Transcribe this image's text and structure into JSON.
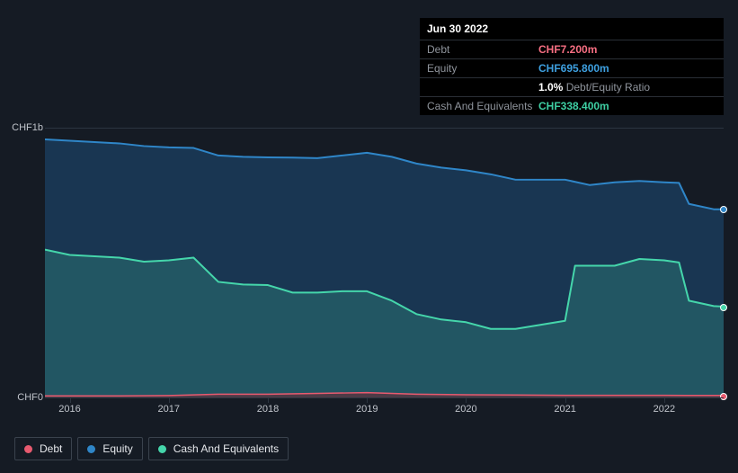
{
  "tooltip": {
    "date": "Jun 30 2022",
    "rows": [
      {
        "label": "Debt",
        "value": "CHF7.200m",
        "cls": "debt"
      },
      {
        "label": "Equity",
        "value": "CHF695.800m",
        "cls": "equity"
      },
      {
        "label": "",
        "ratio_num": "1.0%",
        "ratio_txt": " Debt/Equity Ratio",
        "cls": "ratio"
      },
      {
        "label": "Cash And Equivalents",
        "value": "CHF338.400m",
        "cls": "cash"
      }
    ]
  },
  "chart": {
    "type": "area",
    "background_color": "#151b24",
    "grid_color": "#2c3540",
    "xlim": [
      2015.75,
      2022.6
    ],
    "ylim": [
      0,
      1000
    ],
    "y_ticks": [
      {
        "v": 1000,
        "label": "CHF1b"
      },
      {
        "v": 0,
        "label": "CHF0"
      }
    ],
    "x_ticks": [
      2016,
      2017,
      2018,
      2019,
      2020,
      2021,
      2022
    ],
    "series": {
      "equity": {
        "color": "#2f86c8",
        "fill": "#1d4d78",
        "fill_opacity": 0.55,
        "line_width": 2,
        "points": [
          [
            2015.75,
            960
          ],
          [
            2016.0,
            955
          ],
          [
            2016.25,
            950
          ],
          [
            2016.5,
            945
          ],
          [
            2016.75,
            935
          ],
          [
            2017.0,
            930
          ],
          [
            2017.25,
            928
          ],
          [
            2017.5,
            900
          ],
          [
            2017.75,
            895
          ],
          [
            2018.0,
            893
          ],
          [
            2018.25,
            892
          ],
          [
            2018.5,
            890
          ],
          [
            2018.75,
            900
          ],
          [
            2019.0,
            910
          ],
          [
            2019.25,
            895
          ],
          [
            2019.5,
            870
          ],
          [
            2019.75,
            855
          ],
          [
            2020.0,
            845
          ],
          [
            2020.25,
            830
          ],
          [
            2020.5,
            810
          ],
          [
            2020.75,
            810
          ],
          [
            2021.0,
            810
          ],
          [
            2021.25,
            790
          ],
          [
            2021.5,
            800
          ],
          [
            2021.75,
            805
          ],
          [
            2022.0,
            800
          ],
          [
            2022.15,
            798
          ],
          [
            2022.25,
            720
          ],
          [
            2022.5,
            700
          ],
          [
            2022.6,
            700
          ]
        ],
        "end_marker": true
      },
      "cash": {
        "color": "#45d6ab",
        "fill": "#2f7e77",
        "fill_opacity": 0.45,
        "line_width": 2,
        "points": [
          [
            2015.75,
            550
          ],
          [
            2016.0,
            530
          ],
          [
            2016.25,
            525
          ],
          [
            2016.5,
            520
          ],
          [
            2016.75,
            505
          ],
          [
            2017.0,
            510
          ],
          [
            2017.25,
            520
          ],
          [
            2017.5,
            430
          ],
          [
            2017.75,
            420
          ],
          [
            2018.0,
            418
          ],
          [
            2018.25,
            390
          ],
          [
            2018.5,
            390
          ],
          [
            2018.75,
            395
          ],
          [
            2019.0,
            395
          ],
          [
            2019.25,
            360
          ],
          [
            2019.5,
            310
          ],
          [
            2019.75,
            290
          ],
          [
            2020.0,
            280
          ],
          [
            2020.25,
            255
          ],
          [
            2020.5,
            255
          ],
          [
            2020.75,
            270
          ],
          [
            2021.0,
            285
          ],
          [
            2021.1,
            490
          ],
          [
            2021.25,
            490
          ],
          [
            2021.5,
            490
          ],
          [
            2021.75,
            515
          ],
          [
            2022.0,
            510
          ],
          [
            2022.15,
            502
          ],
          [
            2022.25,
            360
          ],
          [
            2022.5,
            340
          ],
          [
            2022.6,
            338
          ]
        ],
        "end_marker": true
      },
      "debt": {
        "color": "#e75a6f",
        "fill": "#6b2a36",
        "fill_opacity": 0.6,
        "line_width": 1.5,
        "points": [
          [
            2015.75,
            6
          ],
          [
            2016.5,
            6
          ],
          [
            2017.0,
            7
          ],
          [
            2017.5,
            12
          ],
          [
            2018.0,
            12
          ],
          [
            2018.5,
            15
          ],
          [
            2019.0,
            18
          ],
          [
            2019.5,
            12
          ],
          [
            2020.0,
            10
          ],
          [
            2020.5,
            9
          ],
          [
            2021.0,
            8
          ],
          [
            2021.5,
            8
          ],
          [
            2022.0,
            8
          ],
          [
            2022.5,
            7.2
          ],
          [
            2022.6,
            7.2
          ]
        ],
        "end_marker": true
      }
    }
  },
  "legend": [
    {
      "label": "Debt",
      "color": "#e75a6f",
      "key": "debt"
    },
    {
      "label": "Equity",
      "color": "#2f86c8",
      "key": "equity"
    },
    {
      "label": "Cash And Equivalents",
      "color": "#45d6ab",
      "key": "cash"
    }
  ]
}
